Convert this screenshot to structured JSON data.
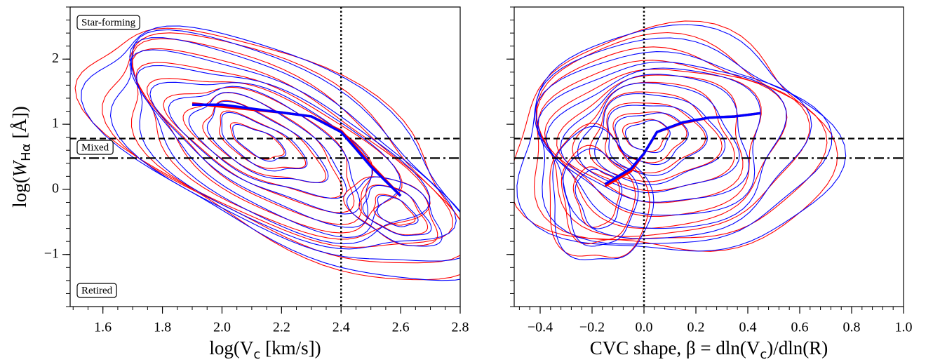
{
  "chart_data": [
    {
      "type": "line",
      "xlabel": [
        "log(",
        "V",
        "c",
        " [km/s])"
      ],
      "ylabel": [
        "log(",
        "W",
        "Hα",
        " [Å])"
      ],
      "xlim": [
        1.49,
        2.8
      ],
      "ylim": [
        -1.8,
        2.8
      ],
      "xticks": [
        1.6,
        1.8,
        {
          "value": 2,
          "label": "2.0"
        },
        2.2,
        2.4,
        2.6,
        2.8
      ],
      "yticks": [
        {
          "value": -1,
          "label": "−1"
        },
        0,
        1,
        2
      ],
      "reference_lines": {
        "y": [
          0.78,
          0.48
        ],
        "x": 2.4
      },
      "annotations": [
        "Star-forming",
        "Mixed",
        "Retired"
      ],
      "series": [
        {
          "color": "#ff0000",
          "x": [
            1.9,
            2.0,
            2.2,
            2.3,
            2.4,
            2.45,
            2.5,
            2.6
          ],
          "values": [
            1.32,
            1.27,
            1.18,
            1.12,
            0.9,
            0.65,
            0.38,
            -0.1
          ]
        },
        {
          "color": "#0000ff",
          "x": [
            1.9,
            2.0,
            2.2,
            2.3,
            2.4,
            2.45,
            2.5,
            2.6
          ],
          "values": [
            1.3,
            1.3,
            1.18,
            1.12,
            0.88,
            0.62,
            0.35,
            -0.1
          ]
        }
      ]
    },
    {
      "type": "line",
      "xlabel": [
        "CVC shape, β = dln(V",
        "c",
        ")/dln(R)"
      ],
      "xlim": [
        -0.5,
        1.0
      ],
      "ylim": [
        -1.8,
        2.8
      ],
      "xticks": [
        {
          "value": -0.4,
          "label": "−0.4"
        },
        {
          "value": -0.2,
          "label": "−0.2"
        },
        {
          "value": 0,
          "label": "0.0"
        },
        0.2,
        0.4,
        0.6,
        0.8,
        {
          "value": 1,
          "label": "1.0"
        }
      ],
      "yticks": [
        -1,
        0,
        1,
        2
      ],
      "reference_lines": {
        "y": [
          0.78,
          0.48
        ],
        "x": 0
      },
      "series": [
        {
          "color": "#ff0000",
          "x": [
            -0.15,
            -0.05,
            0.0,
            0.05,
            0.15,
            0.25,
            0.35,
            0.45
          ],
          "values": [
            0.05,
            0.28,
            0.55,
            0.88,
            1.02,
            1.1,
            1.12,
            1.17
          ]
        },
        {
          "color": "#0000ff",
          "x": [
            -0.15,
            -0.05,
            0.0,
            0.05,
            0.15,
            0.25,
            0.35,
            0.45
          ],
          "values": [
            0.08,
            0.32,
            0.55,
            0.88,
            1.03,
            1.1,
            1.12,
            1.17
          ]
        }
      ]
    }
  ]
}
